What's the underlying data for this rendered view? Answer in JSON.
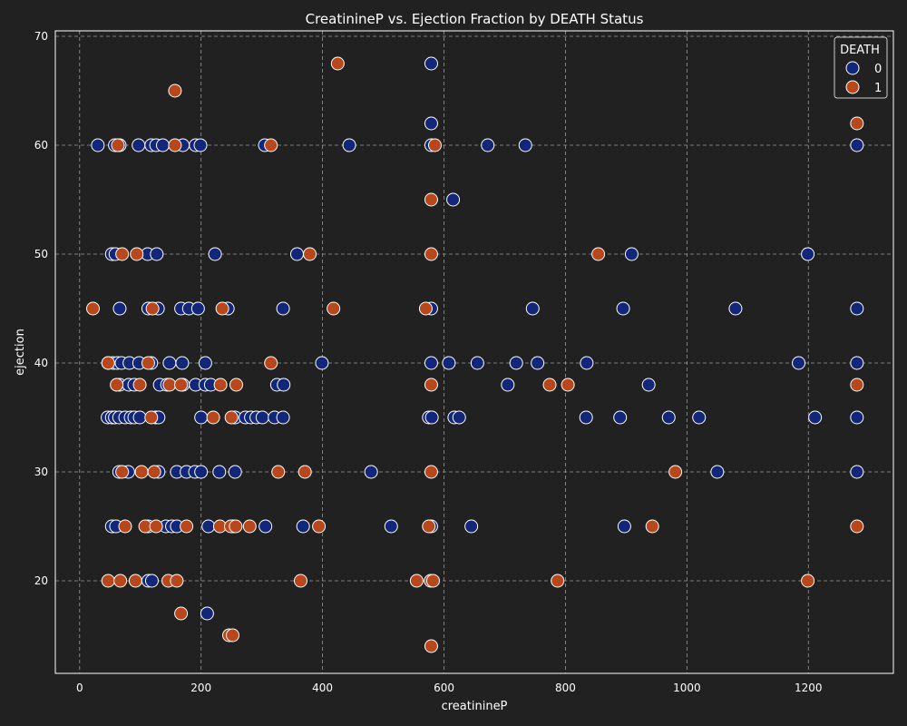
{
  "colors": {
    "background": "#212121",
    "plot_background": "#212121",
    "grid": "#9a9a9a",
    "text": "#ffffff",
    "series_0": "#13277a",
    "series_1": "#b8471b",
    "marker_edge": "#ffffff"
  },
  "chart_data": {
    "type": "scatter",
    "title": "CreatinineP vs. Ejection Fraction by DEATH Status",
    "xlabel": "creatinineP",
    "ylabel": "ejection",
    "xlim": [
      -40,
      1340
    ],
    "ylim": [
      11.5,
      70.5
    ],
    "xticks": [
      0,
      200,
      400,
      600,
      800,
      1000,
      1200
    ],
    "yticks": [
      20,
      30,
      40,
      50,
      60,
      70
    ],
    "grid": true,
    "legend": {
      "title": "DEATH",
      "position": "top-right",
      "entries": [
        "0",
        "1"
      ]
    },
    "series": [
      {
        "name": "0",
        "points": [
          [
            30,
            60
          ],
          [
            58,
            60
          ],
          [
            66,
            60
          ],
          [
            97,
            60
          ],
          [
            118,
            60
          ],
          [
            126,
            60
          ],
          [
            137,
            60
          ],
          [
            170,
            60
          ],
          [
            191,
            60
          ],
          [
            199,
            60
          ],
          [
            305,
            60
          ],
          [
            444,
            60
          ],
          [
            579,
            60
          ],
          [
            672,
            60
          ],
          [
            734,
            60
          ],
          [
            1280,
            60
          ],
          [
            579,
            67.5
          ],
          [
            579,
            62
          ],
          [
            615,
            55
          ],
          [
            53,
            50
          ],
          [
            59,
            50
          ],
          [
            112,
            50
          ],
          [
            127,
            50
          ],
          [
            223,
            50
          ],
          [
            358,
            50
          ],
          [
            909,
            50
          ],
          [
            1199,
            50
          ],
          [
            66,
            45
          ],
          [
            113,
            45
          ],
          [
            129,
            45
          ],
          [
            167,
            45
          ],
          [
            180,
            45
          ],
          [
            195,
            45
          ],
          [
            244,
            45
          ],
          [
            335,
            45
          ],
          [
            579,
            45
          ],
          [
            746,
            45
          ],
          [
            895,
            45
          ],
          [
            1080,
            45
          ],
          [
            1280,
            45
          ],
          [
            47,
            40
          ],
          [
            55,
            40
          ],
          [
            62,
            40
          ],
          [
            69,
            40
          ],
          [
            82,
            40
          ],
          [
            98,
            40
          ],
          [
            118,
            40
          ],
          [
            148,
            40
          ],
          [
            169,
            40
          ],
          [
            207,
            40
          ],
          [
            399,
            40
          ],
          [
            579,
            40
          ],
          [
            608,
            40
          ],
          [
            655,
            40
          ],
          [
            719,
            40
          ],
          [
            754,
            40
          ],
          [
            835,
            40
          ],
          [
            1184,
            40
          ],
          [
            1280,
            40
          ],
          [
            66,
            38
          ],
          [
            81,
            38
          ],
          [
            90,
            38
          ],
          [
            132,
            38
          ],
          [
            144,
            38
          ],
          [
            170,
            38
          ],
          [
            191,
            38
          ],
          [
            207,
            38
          ],
          [
            216,
            38
          ],
          [
            325,
            38
          ],
          [
            336,
            38
          ],
          [
            705,
            38
          ],
          [
            937,
            38
          ],
          [
            46,
            35
          ],
          [
            53,
            35
          ],
          [
            58,
            35
          ],
          [
            65,
            35
          ],
          [
            75,
            35
          ],
          [
            84,
            35
          ],
          [
            90,
            35
          ],
          [
            99,
            35
          ],
          [
            125,
            35
          ],
          [
            130,
            35
          ],
          [
            200,
            35
          ],
          [
            256,
            35
          ],
          [
            273,
            35
          ],
          [
            282,
            35
          ],
          [
            291,
            35
          ],
          [
            301,
            35
          ],
          [
            321,
            35
          ],
          [
            335,
            35
          ],
          [
            575,
            35
          ],
          [
            580,
            35
          ],
          [
            617,
            35
          ],
          [
            625,
            35
          ],
          [
            834,
            35
          ],
          [
            890,
            35
          ],
          [
            970,
            35
          ],
          [
            1020,
            35
          ],
          [
            1211,
            35
          ],
          [
            1280,
            35
          ],
          [
            65,
            30
          ],
          [
            80,
            30
          ],
          [
            130,
            30
          ],
          [
            160,
            30
          ],
          [
            176,
            30
          ],
          [
            190,
            30
          ],
          [
            200,
            30
          ],
          [
            230,
            30
          ],
          [
            256,
            30
          ],
          [
            480,
            30
          ],
          [
            1050,
            30
          ],
          [
            1280,
            30
          ],
          [
            53,
            25
          ],
          [
            60,
            25
          ],
          [
            113,
            25
          ],
          [
            142,
            25
          ],
          [
            152,
            25
          ],
          [
            160,
            25
          ],
          [
            212,
            25
          ],
          [
            253,
            25
          ],
          [
            306,
            25
          ],
          [
            368,
            25
          ],
          [
            513,
            25
          ],
          [
            579,
            25
          ],
          [
            645,
            25
          ],
          [
            897,
            25
          ],
          [
            113,
            20
          ],
          [
            119,
            20
          ],
          [
            210,
            17
          ]
        ]
      },
      {
        "name": "1",
        "points": [
          [
            157,
            65
          ],
          [
            425,
            67.5
          ],
          [
            63,
            60
          ],
          [
            157,
            60
          ],
          [
            315,
            60
          ],
          [
            585,
            60
          ],
          [
            1280,
            62
          ],
          [
            579,
            55
          ],
          [
            70,
            50
          ],
          [
            94,
            50
          ],
          [
            379,
            50
          ],
          [
            579,
            50
          ],
          [
            854,
            50
          ],
          [
            22,
            45
          ],
          [
            120,
            45
          ],
          [
            235,
            45
          ],
          [
            418,
            45
          ],
          [
            570,
            45
          ],
          [
            47,
            40
          ],
          [
            113,
            40
          ],
          [
            315,
            40
          ],
          [
            61,
            38
          ],
          [
            99,
            38
          ],
          [
            148,
            38
          ],
          [
            167,
            38
          ],
          [
            232,
            38
          ],
          [
            258,
            38
          ],
          [
            579,
            38
          ],
          [
            774,
            38
          ],
          [
            804,
            38
          ],
          [
            1280,
            38
          ],
          [
            118,
            35
          ],
          [
            220,
            35
          ],
          [
            250,
            35
          ],
          [
            70,
            30
          ],
          [
            102,
            30
          ],
          [
            123,
            30
          ],
          [
            327,
            30
          ],
          [
            371,
            30
          ],
          [
            579,
            30
          ],
          [
            981,
            30
          ],
          [
            75,
            25
          ],
          [
            108,
            25
          ],
          [
            126,
            25
          ],
          [
            176,
            25
          ],
          [
            231,
            25
          ],
          [
            249,
            25
          ],
          [
            257,
            25
          ],
          [
            280,
            25
          ],
          [
            394,
            25
          ],
          [
            575,
            25
          ],
          [
            943,
            25
          ],
          [
            1280,
            25
          ],
          [
            47,
            20
          ],
          [
            67,
            20
          ],
          [
            92,
            20
          ],
          [
            146,
            20
          ],
          [
            160,
            20
          ],
          [
            364,
            20
          ],
          [
            555,
            20
          ],
          [
            578,
            20
          ],
          [
            582,
            20
          ],
          [
            787,
            20
          ],
          [
            1199,
            20
          ],
          [
            167,
            17
          ],
          [
            246,
            15
          ],
          [
            252,
            15
          ],
          [
            579,
            14
          ]
        ]
      }
    ]
  }
}
